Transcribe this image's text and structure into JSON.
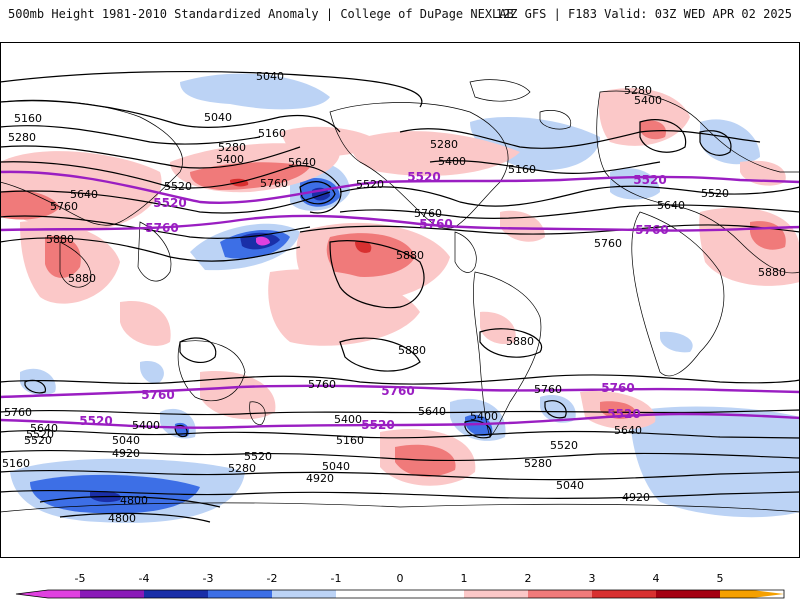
{
  "header": {
    "left": "500mb Height 1981-2010 Standardized Anomaly | College of DuPage NEXLAB",
    "right": "12Z GFS | F183 Valid: 03Z WED APR 02 2025"
  },
  "colors": {
    "neg5": "#e040e0",
    "neg4": "#8a1ab8",
    "neg3": "#1a2fa8",
    "neg2": "#3d6fe6",
    "neg1": "#bcd3f5",
    "pos1": "#fbc8c8",
    "pos2": "#f07a7a",
    "pos3": "#d83030",
    "pos4": "#a40012",
    "pos5": "#f5a000",
    "highlight": "#9a1ec2",
    "contour": "#000000"
  },
  "contour_labels": {
    "black": [
      "5040",
      "5040",
      "5160",
      "5280",
      "5160",
      "5280",
      "5400",
      "5640",
      "5760",
      "5520",
      "5640",
      "5760",
      "5880",
      "5880",
      "5520",
      "5280",
      "5400",
      "5160",
      "5280",
      "5400",
      "5520",
      "5640",
      "5760",
      "5880",
      "5880",
      "5760",
      "5880",
      "5880",
      "5760",
      "5640",
      "5760",
      "5400",
      "5640",
      "5520",
      "5040",
      "4920",
      "5280",
      "5520",
      "5160",
      "5040",
      "4920",
      "5280",
      "5040",
      "4920",
      "5520",
      "5400",
      "5160",
      "4800",
      "4800",
      "5400",
      "5520",
      "5640",
      "5760"
    ],
    "purple": [
      "5520",
      "5760",
      "5520",
      "5760",
      "5520",
      "5760",
      "5760",
      "5520",
      "5760",
      "5520",
      "5760",
      "5520"
    ]
  },
  "colorbar": {
    "ticks": [
      "-5",
      "-4",
      "-3",
      "-2",
      "-1",
      "0",
      "1",
      "2",
      "3",
      "4",
      "5"
    ]
  }
}
